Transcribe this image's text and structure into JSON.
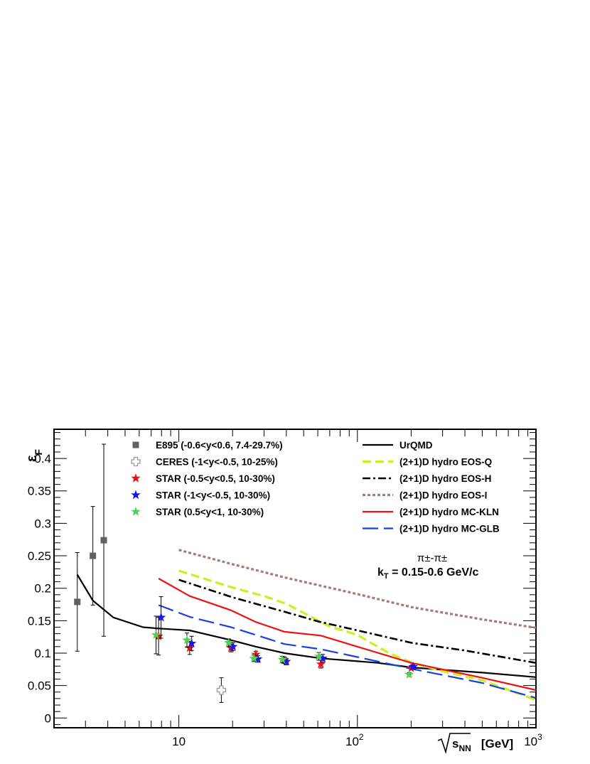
{
  "chart_data": {
    "type": "scatter",
    "xlabel": "√s_NN [GeV]",
    "xlabel_parts": {
      "main": "s",
      "sub": "NN",
      "unit": "[GeV]"
    },
    "ylabel": "ε_F",
    "ylabel_parts": {
      "main": "ε",
      "sub": "F"
    },
    "x_scale": "log",
    "xlim": [
      2.0,
      1000
    ],
    "ylim": [
      -0.015,
      0.445
    ],
    "x_tick_labels": [
      {
        "value": 10,
        "base": "10",
        "exp": ""
      },
      {
        "value": 100,
        "base": "10",
        "exp": "2"
      },
      {
        "value": 1000,
        "base": "10",
        "exp": "3"
      }
    ],
    "y_tick_labels": [
      "0",
      "0.05",
      "0.1",
      "0.15",
      "0.2",
      "0.25",
      "0.3",
      "0.35",
      "0.4"
    ],
    "grid": false,
    "annotations": [
      "π±-π±",
      "kT = 0.15-0.6 GeV/c"
    ],
    "annotation_parts": {
      "pair": "π±-π±",
      "kt_main": "k",
      "kt_sub": "T",
      "kt_rest": " = 0.15-0.6 GeV/c"
    },
    "marker_series": [
      {
        "name": "E895 (-0.6<y<0.6, 7.4-29.7%)",
        "marker": "square",
        "color": "#616161",
        "points": [
          {
            "x": 2.7,
            "y": 0.179,
            "err": 0.076
          },
          {
            "x": 3.3,
            "y": 0.25,
            "err": 0.076
          },
          {
            "x": 3.8,
            "y": 0.274,
            "err": 0.148
          }
        ]
      },
      {
        "name": "CERES (-1<y<-0.5, 10-25%)",
        "marker": "open-cross",
        "color": "#9a9a9a",
        "points": [
          {
            "x": 17.3,
            "y": 0.043,
            "err": 0.019
          }
        ]
      },
      {
        "name": "STAR (-0.5<y<0.5, 10-30%)",
        "marker": "star",
        "color": "#ee1111",
        "points": [
          {
            "x": 7.7,
            "y": 0.126,
            "err": 0.029
          },
          {
            "x": 11.5,
            "y": 0.108,
            "err": 0.01
          },
          {
            "x": 19.6,
            "y": 0.108,
            "err": 0.006
          },
          {
            "x": 27.0,
            "y": 0.098,
            "err": 0.005
          },
          {
            "x": 39.0,
            "y": 0.089,
            "err": 0.005
          },
          {
            "x": 62.4,
            "y": 0.083,
            "err": 0.006
          },
          {
            "x": 200.0,
            "y": 0.077,
            "err": 0.003
          }
        ]
      },
      {
        "name": "STAR (-1<y<-0.5, 10-30%)",
        "marker": "star",
        "color": "#1515ee",
        "points": [
          {
            "x": 7.95,
            "y": 0.155,
            "err": 0.032
          },
          {
            "x": 11.8,
            "y": 0.115,
            "err": 0.011
          },
          {
            "x": 20.1,
            "y": 0.11,
            "err": 0.006
          },
          {
            "x": 27.7,
            "y": 0.091,
            "err": 0.005
          },
          {
            "x": 40.0,
            "y": 0.087,
            "err": 0.005
          },
          {
            "x": 64.0,
            "y": 0.092,
            "err": 0.006
          },
          {
            "x": 205.0,
            "y": 0.079,
            "err": 0.003
          }
        ]
      },
      {
        "name": "STAR (0.5<y<1, 10-30%)",
        "marker": "star",
        "color": "#55cc55",
        "points": [
          {
            "x": 7.45,
            "y": 0.128,
            "err": 0.029
          },
          {
            "x": 11.1,
            "y": 0.12,
            "err": 0.011
          },
          {
            "x": 19.0,
            "y": 0.116,
            "err": 0.006
          },
          {
            "x": 26.3,
            "y": 0.092,
            "err": 0.005
          },
          {
            "x": 38.0,
            "y": 0.09,
            "err": 0.005
          },
          {
            "x": 60.8,
            "y": 0.095,
            "err": 0.006
          },
          {
            "x": 195.0,
            "y": 0.067,
            "err": 0.003
          }
        ]
      }
    ],
    "line_series": [
      {
        "name": "UrQMD",
        "color": "#000000",
        "style": "solid",
        "x": [
          2.7,
          3.3,
          4.3,
          6.3,
          7.7,
          11.5,
          19.6,
          27,
          39,
          62.4,
          130,
          200,
          500,
          1000
        ],
        "y": [
          0.221,
          0.181,
          0.155,
          0.14,
          0.138,
          0.135,
          0.12,
          0.11,
          0.1,
          0.092,
          0.085,
          0.078,
          0.07,
          0.063
        ]
      },
      {
        "name": "(2+1)D hydro EOS-Q",
        "color": "#ccee22",
        "style": "dash-heavy",
        "x": [
          10,
          20,
          30,
          40,
          50,
          70,
          100,
          150,
          200,
          300,
          500,
          1000
        ],
        "y": [
          0.227,
          0.201,
          0.188,
          0.176,
          0.162,
          0.141,
          0.128,
          0.1,
          0.086,
          0.072,
          0.058,
          0.028
        ]
      },
      {
        "name": "(2+1)D hydro EOS-H",
        "color": "#000000",
        "style": "dash-dot",
        "x": [
          10,
          20,
          40,
          60,
          100,
          200,
          400,
          1000
        ],
        "y": [
          0.213,
          0.186,
          0.163,
          0.149,
          0.135,
          0.116,
          0.104,
          0.085
        ]
      },
      {
        "name": "(2+1)D hydro EOS-I",
        "color": "#a87a7a",
        "style": "dotted",
        "x": [
          10,
          20,
          40,
          100,
          200,
          500,
          1000
        ],
        "y": [
          0.259,
          0.237,
          0.216,
          0.191,
          0.171,
          0.152,
          0.139
        ]
      },
      {
        "name": "(2+1)D hydro MC-KLN",
        "color": "#ee1111",
        "style": "solid",
        "x": [
          7.7,
          11.5,
          19.6,
          27,
          39,
          62.4,
          100,
          200,
          500,
          1000
        ],
        "y": [
          0.215,
          0.188,
          0.166,
          0.148,
          0.133,
          0.127,
          0.11,
          0.085,
          0.062,
          0.043
        ]
      },
      {
        "name": "(2+1)D hydro MC-GLB",
        "color": "#1a3fe6",
        "style": "long-dash",
        "x": [
          7.7,
          11.5,
          19.6,
          27,
          39,
          62.4,
          100,
          200,
          500,
          1000
        ],
        "y": [
          0.174,
          0.156,
          0.14,
          0.128,
          0.114,
          0.106,
          0.094,
          0.076,
          0.054,
          0.031
        ]
      }
    ]
  }
}
